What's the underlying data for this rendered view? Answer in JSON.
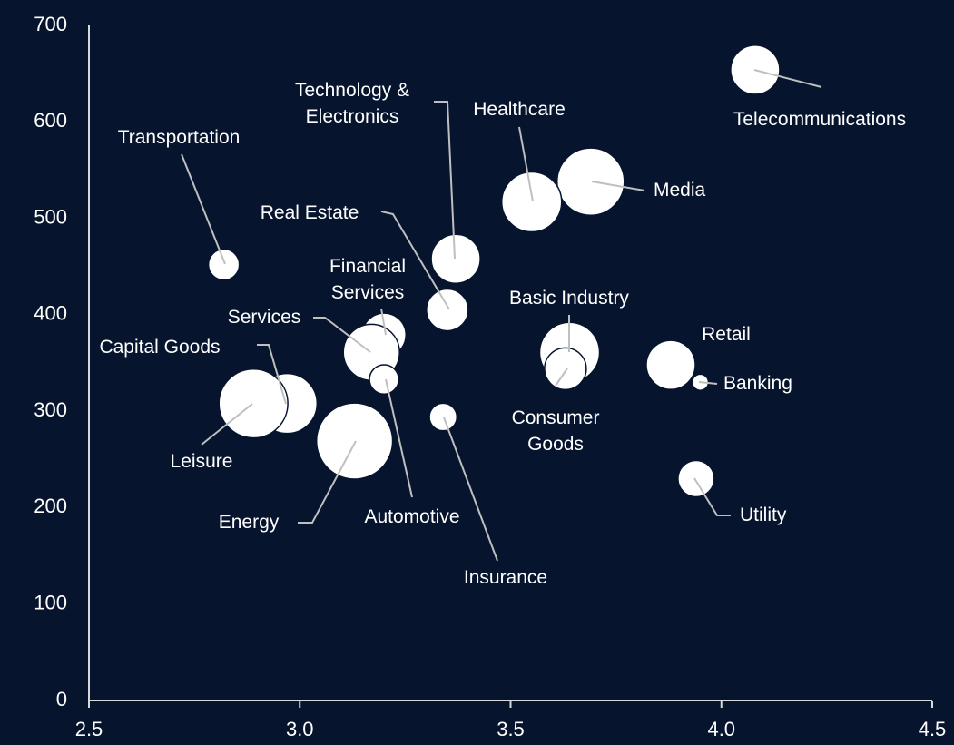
{
  "chart_data": {
    "type": "bubble",
    "labels": [
      "Telecommunications",
      "Media",
      "Healthcare",
      "Technology & Electronics",
      "Transportation",
      "Real Estate",
      "Financial Services",
      "Services",
      "Automotive",
      "Capital Goods",
      "Leisure",
      "Energy",
      "Insurance",
      "Basic Industry",
      "Consumer Goods",
      "Retail",
      "Banking",
      "Utility"
    ],
    "x": [
      4.08,
      3.69,
      3.55,
      3.37,
      2.82,
      3.35,
      3.2,
      3.17,
      3.2,
      2.97,
      2.89,
      3.13,
      3.34,
      3.64,
      3.63,
      3.88,
      3.95,
      3.94
    ],
    "y": [
      654,
      538,
      517,
      458,
      452,
      405,
      379,
      361,
      333,
      308,
      308,
      269,
      294,
      361,
      344,
      348,
      330,
      230
    ],
    "size": [
      7.3,
      13.7,
      10.9,
      7.3,
      2.9,
      5.3,
      5.8,
      9.6,
      2.6,
      10.9,
      14.4,
      17.6,
      2.3,
      10.9,
      5.3,
      7.3,
      0.8,
      4.0
    ],
    "color": "#ffffff",
    "xlim": [
      2.5,
      4.5
    ],
    "xticks": [
      2.5,
      {
        "value": 3,
        "label": "3.0"
      },
      3.5,
      {
        "value": 4,
        "label": "4.0"
      },
      4.5
    ],
    "ylim": [
      0,
      700
    ],
    "yticks": [
      0,
      100,
      200,
      300,
      400,
      500,
      600,
      700
    ]
  }
}
